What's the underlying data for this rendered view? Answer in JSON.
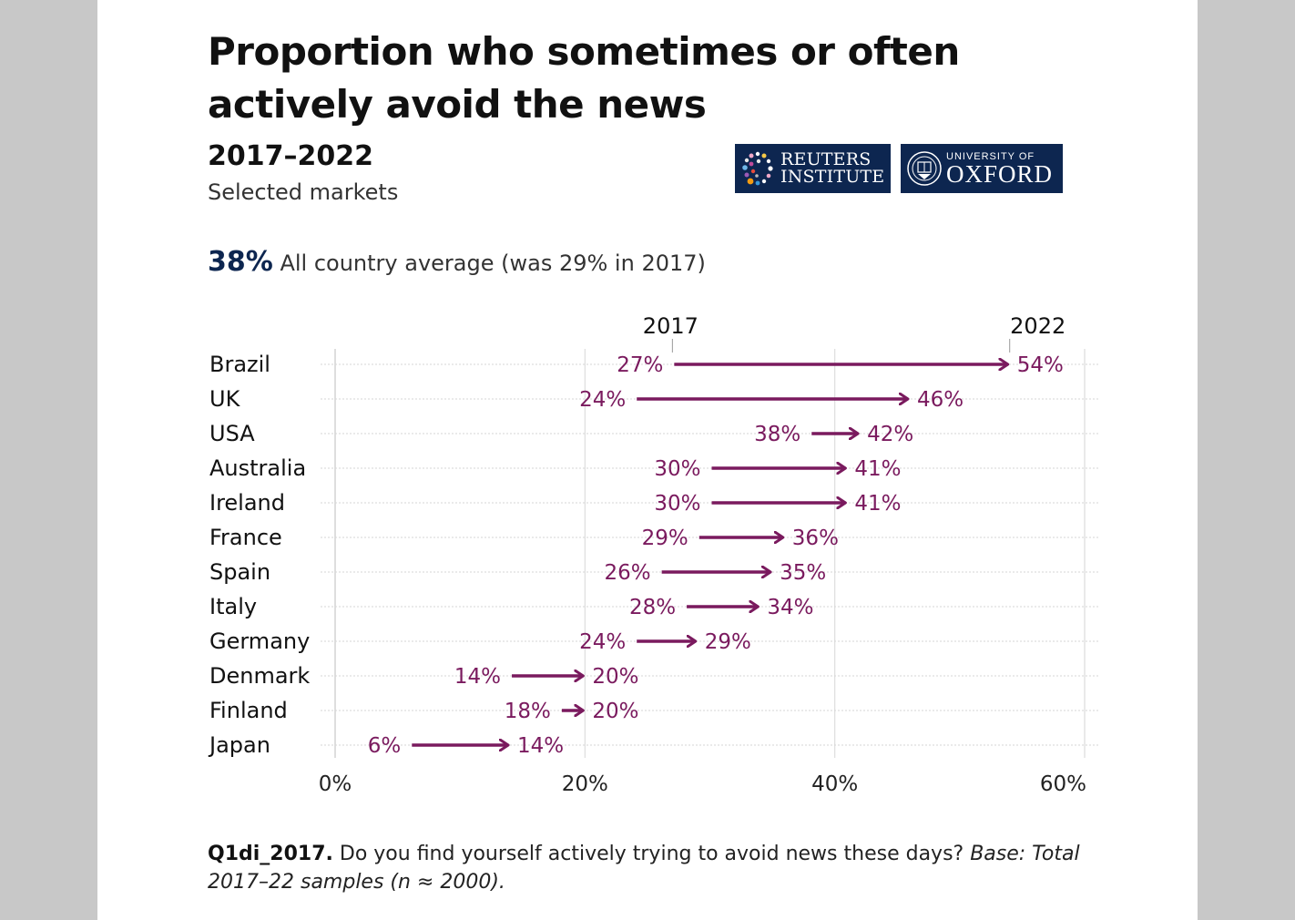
{
  "title": "Proportion who sometimes or often actively avoid the news",
  "years": "2017–2022",
  "subtitle": "Selected markets",
  "average": {
    "value": "38%",
    "text": "All country average (was 29% in 2017)"
  },
  "logos": {
    "reuters_line1": "REUTERS",
    "reuters_line2": "INSTITUTE",
    "oxford_line1": "UNIVERSITY OF",
    "oxford_line2": "OXFORD"
  },
  "colors": {
    "accent": "#7a1a5e",
    "navy": "#0d2650",
    "grid": "#dddddd"
  },
  "chart_data": {
    "type": "arrow-dumbbell",
    "title": "Proportion who sometimes or often actively avoid the news",
    "series_labels": [
      "2017",
      "2022"
    ],
    "xlim": [
      0,
      60
    ],
    "xticks": [
      0,
      20,
      40,
      60
    ],
    "xtick_labels": [
      "0%",
      "20%",
      "40%",
      "60%"
    ],
    "categories": [
      "Brazil",
      "UK",
      "USA",
      "Australia",
      "Ireland",
      "France",
      "Spain",
      "Italy",
      "Germany",
      "Denmark",
      "Finland",
      "Japan"
    ],
    "start": [
      27,
      24,
      38,
      30,
      30,
      29,
      26,
      28,
      24,
      14,
      18,
      6
    ],
    "end": [
      54,
      46,
      42,
      41,
      41,
      36,
      35,
      34,
      29,
      20,
      20,
      14
    ],
    "start_labels": [
      "27%",
      "24%",
      "38%",
      "30%",
      "30%",
      "29%",
      "26%",
      "28%",
      "24%",
      "14%",
      "18%",
      "6%"
    ],
    "end_labels": [
      "54%",
      "46%",
      "42%",
      "41%",
      "41%",
      "36%",
      "35%",
      "34%",
      "29%",
      "20%",
      "20%",
      "14%"
    ]
  },
  "footnote": {
    "question": "Q1di_2017.",
    "text": " Do you find yourself actively trying to avoid news these days? ",
    "base": "Base: Total 2017–22 samples (n ≈ 2000)."
  }
}
